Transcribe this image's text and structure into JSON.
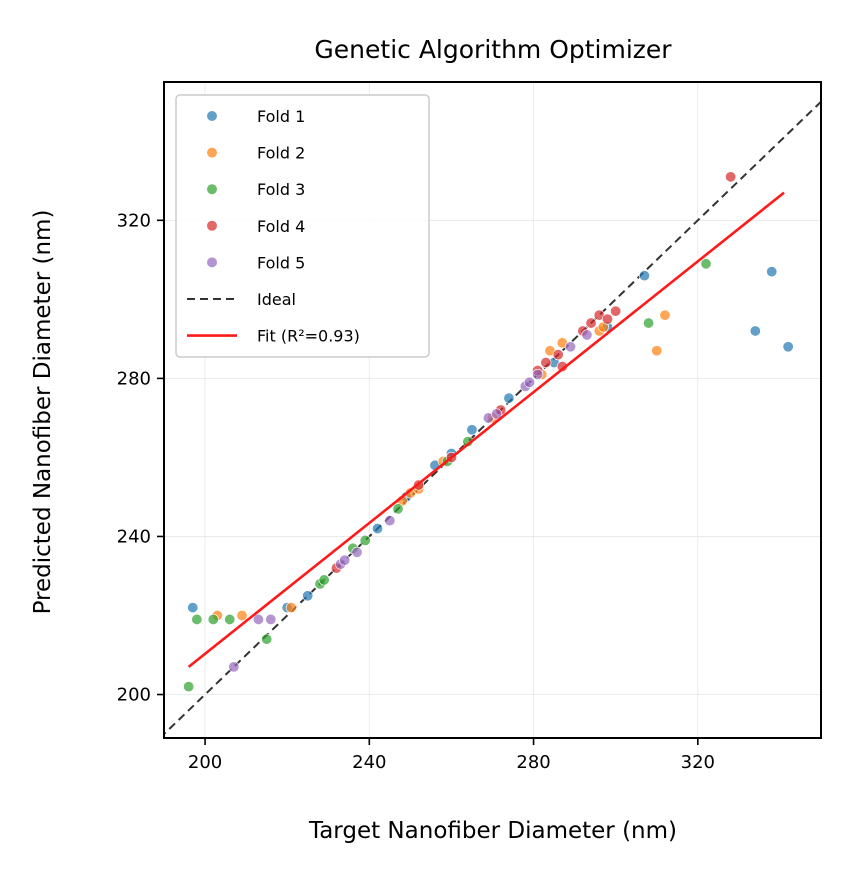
{
  "chart_data": {
    "type": "scatter",
    "title": "Genetic Algorithm Optimizer",
    "xlabel": "Target Nanofiber Diameter (nm)",
    "ylabel": "Predicted Nanofiber  Diameter (nm)",
    "xlim": [
      190,
      350
    ],
    "ylim": [
      189,
      355
    ],
    "xticks": [
      200,
      240,
      280,
      320
    ],
    "yticks": [
      200,
      240,
      280,
      320
    ],
    "grid": true,
    "legend_position": "upper-left",
    "series": [
      {
        "name": "Fold 1",
        "color": "#1f77b4",
        "points": [
          [
            197,
            222
          ],
          [
            220,
            222
          ],
          [
            225,
            225
          ],
          [
            242,
            242
          ],
          [
            249,
            250
          ],
          [
            256,
            258
          ],
          [
            260,
            261
          ],
          [
            265,
            267
          ],
          [
            274,
            275
          ],
          [
            285,
            284
          ],
          [
            298,
            293
          ],
          [
            307,
            306
          ],
          [
            334,
            292
          ],
          [
            338,
            307
          ],
          [
            342,
            288
          ]
        ]
      },
      {
        "name": "Fold 2",
        "color": "#ff7f0e",
        "points": [
          [
            203,
            220
          ],
          [
            209,
            220
          ],
          [
            221,
            222
          ],
          [
            248,
            249
          ],
          [
            250,
            251
          ],
          [
            252,
            252
          ],
          [
            258,
            259
          ],
          [
            270,
            270
          ],
          [
            282,
            281
          ],
          [
            284,
            287
          ],
          [
            287,
            289
          ],
          [
            296,
            292
          ],
          [
            297,
            293
          ],
          [
            310,
            287
          ],
          [
            312,
            296
          ]
        ]
      },
      {
        "name": "Fold 3",
        "color": "#2ca02c",
        "points": [
          [
            196,
            202
          ],
          [
            198,
            219
          ],
          [
            202,
            219
          ],
          [
            206,
            219
          ],
          [
            215,
            214
          ],
          [
            228,
            228
          ],
          [
            229,
            229
          ],
          [
            236,
            237
          ],
          [
            239,
            239
          ],
          [
            247,
            247
          ],
          [
            259,
            259
          ],
          [
            264,
            264
          ],
          [
            308,
            294
          ],
          [
            322,
            309
          ]
        ]
      },
      {
        "name": "Fold 4",
        "color": "#d62728",
        "points": [
          [
            232,
            232
          ],
          [
            252,
            253
          ],
          [
            260,
            260
          ],
          [
            272,
            272
          ],
          [
            281,
            282
          ],
          [
            283,
            284
          ],
          [
            286,
            286
          ],
          [
            287,
            283
          ],
          [
            292,
            292
          ],
          [
            294,
            294
          ],
          [
            296,
            296
          ],
          [
            298,
            295
          ],
          [
            300,
            297
          ],
          [
            328,
            331
          ]
        ]
      },
      {
        "name": "Fold 5",
        "color": "#9467bd",
        "points": [
          [
            207,
            207
          ],
          [
            213,
            219
          ],
          [
            216,
            219
          ],
          [
            233,
            233
          ],
          [
            234,
            234
          ],
          [
            237,
            236
          ],
          [
            245,
            244
          ],
          [
            269,
            270
          ],
          [
            271,
            271
          ],
          [
            278,
            278
          ],
          [
            279,
            279
          ],
          [
            281,
            281
          ],
          [
            289,
            288
          ],
          [
            293,
            291
          ]
        ]
      }
    ],
    "ideal_line": {
      "name": "Ideal",
      "color": "#333333"
    },
    "fit_line": {
      "name": "Fit (R²=0.93)",
      "color": "#ff1a1a",
      "x": [
        196,
        341
      ],
      "y": [
        207,
        327
      ]
    }
  }
}
